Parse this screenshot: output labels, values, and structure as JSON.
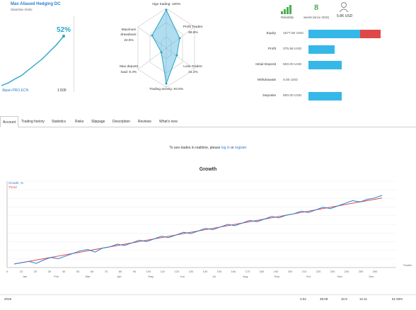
{
  "account": {
    "title": "Max Aliased Hedging DC",
    "author": "Stanislav Sinilo",
    "gain": "52%",
    "broker": "Alpari-PRO.ECN",
    "leverage": "1:500"
  },
  "radar": {
    "algo_trading": "Algo trading: 100%",
    "profit_trades_label": "Profit Trades:",
    "profit_trades_value": "68.8%",
    "loss_trades_label": "Loss Trades:",
    "loss_trades_value": "31.2%",
    "trading_activity": "Trading activity: 94.5%",
    "max_deposit_label": "Max deposit",
    "max_deposit_value": "load: 9.4%",
    "max_drawdown_label": "Maximum",
    "max_drawdown_label2": "drawdown:",
    "max_drawdown_value": "22.5%"
  },
  "stats": {
    "reliability_label": "Reliability",
    "weeks_value": "8",
    "weeks_label": "weeks (since 2019)",
    "subscribers_value": "5.8K USD"
  },
  "bars": [
    {
      "label": "Equity",
      "value": "1577.50 USD",
      "fill": 0.72,
      "extra": 0.28,
      "color": "#35b8e8"
    },
    {
      "label": "Profit",
      "value": "375.56 USD",
      "fill": 0.36,
      "extra": 0,
      "color": "#35b8e8"
    },
    {
      "label": "Initial Deposit",
      "value": "500.00 USD",
      "fill": 0.46,
      "extra": 0,
      "color": "#35b8e8"
    },
    {
      "label": "Withdrawals",
      "value": "0.00 USD",
      "fill": 0,
      "extra": 0,
      "color": "#35b8e8"
    },
    {
      "label": "Deposits",
      "value": "500.00 USD",
      "fill": 0.46,
      "extra": 0,
      "color": "#35b8e8"
    }
  ],
  "tabs": [
    "Account",
    "Trading history",
    "Statistics",
    "Risks",
    "Slippage",
    "Description",
    "Reviews",
    "What's new"
  ],
  "login_note": {
    "prefix": "To see trades in realtime, please",
    "login": "log in",
    "or": "or",
    "register": "register"
  },
  "chart_data": {
    "type": "line",
    "title": "Growth",
    "legend": [
      "Growth, %",
      "Trend"
    ],
    "series_colors": {
      "growth": "#2a7fd4",
      "trend": "#e04848"
    },
    "x_ticks": [
      "0",
      "10",
      "20",
      "30",
      "40",
      "50",
      "60",
      "70",
      "80",
      "90",
      "100",
      "110",
      "120",
      "130",
      "140",
      "150",
      "160",
      "170",
      "180",
      "190",
      "200",
      "210",
      "220",
      "230",
      "240",
      "250",
      "260"
    ],
    "month_ticks": [
      "Jan",
      "Feb",
      "Mar",
      "Apr",
      "May",
      "Jun",
      "Jul",
      "Aug",
      "Sep",
      "Oct",
      "Nov",
      "Dec"
    ],
    "x_label": "Trades",
    "growth": [
      0,
      1,
      2,
      0.5,
      3,
      5,
      4,
      6,
      8,
      10,
      11,
      9,
      12,
      13,
      15,
      14,
      16,
      18,
      17,
      19,
      21,
      20,
      22,
      24,
      23,
      25,
      27,
      26,
      28,
      30,
      29,
      31,
      33,
      32,
      34,
      36,
      35,
      37,
      38,
      40,
      39,
      41,
      43,
      42,
      44,
      46,
      48,
      47,
      49,
      50,
      52
    ],
    "trend": [
      0,
      50
    ]
  },
  "bottom": {
    "year": "2019",
    "val1": "4.04",
    "val2": "39.09",
    "val3": "10.9",
    "val4": "12.11",
    "ytd": "51.93%"
  }
}
